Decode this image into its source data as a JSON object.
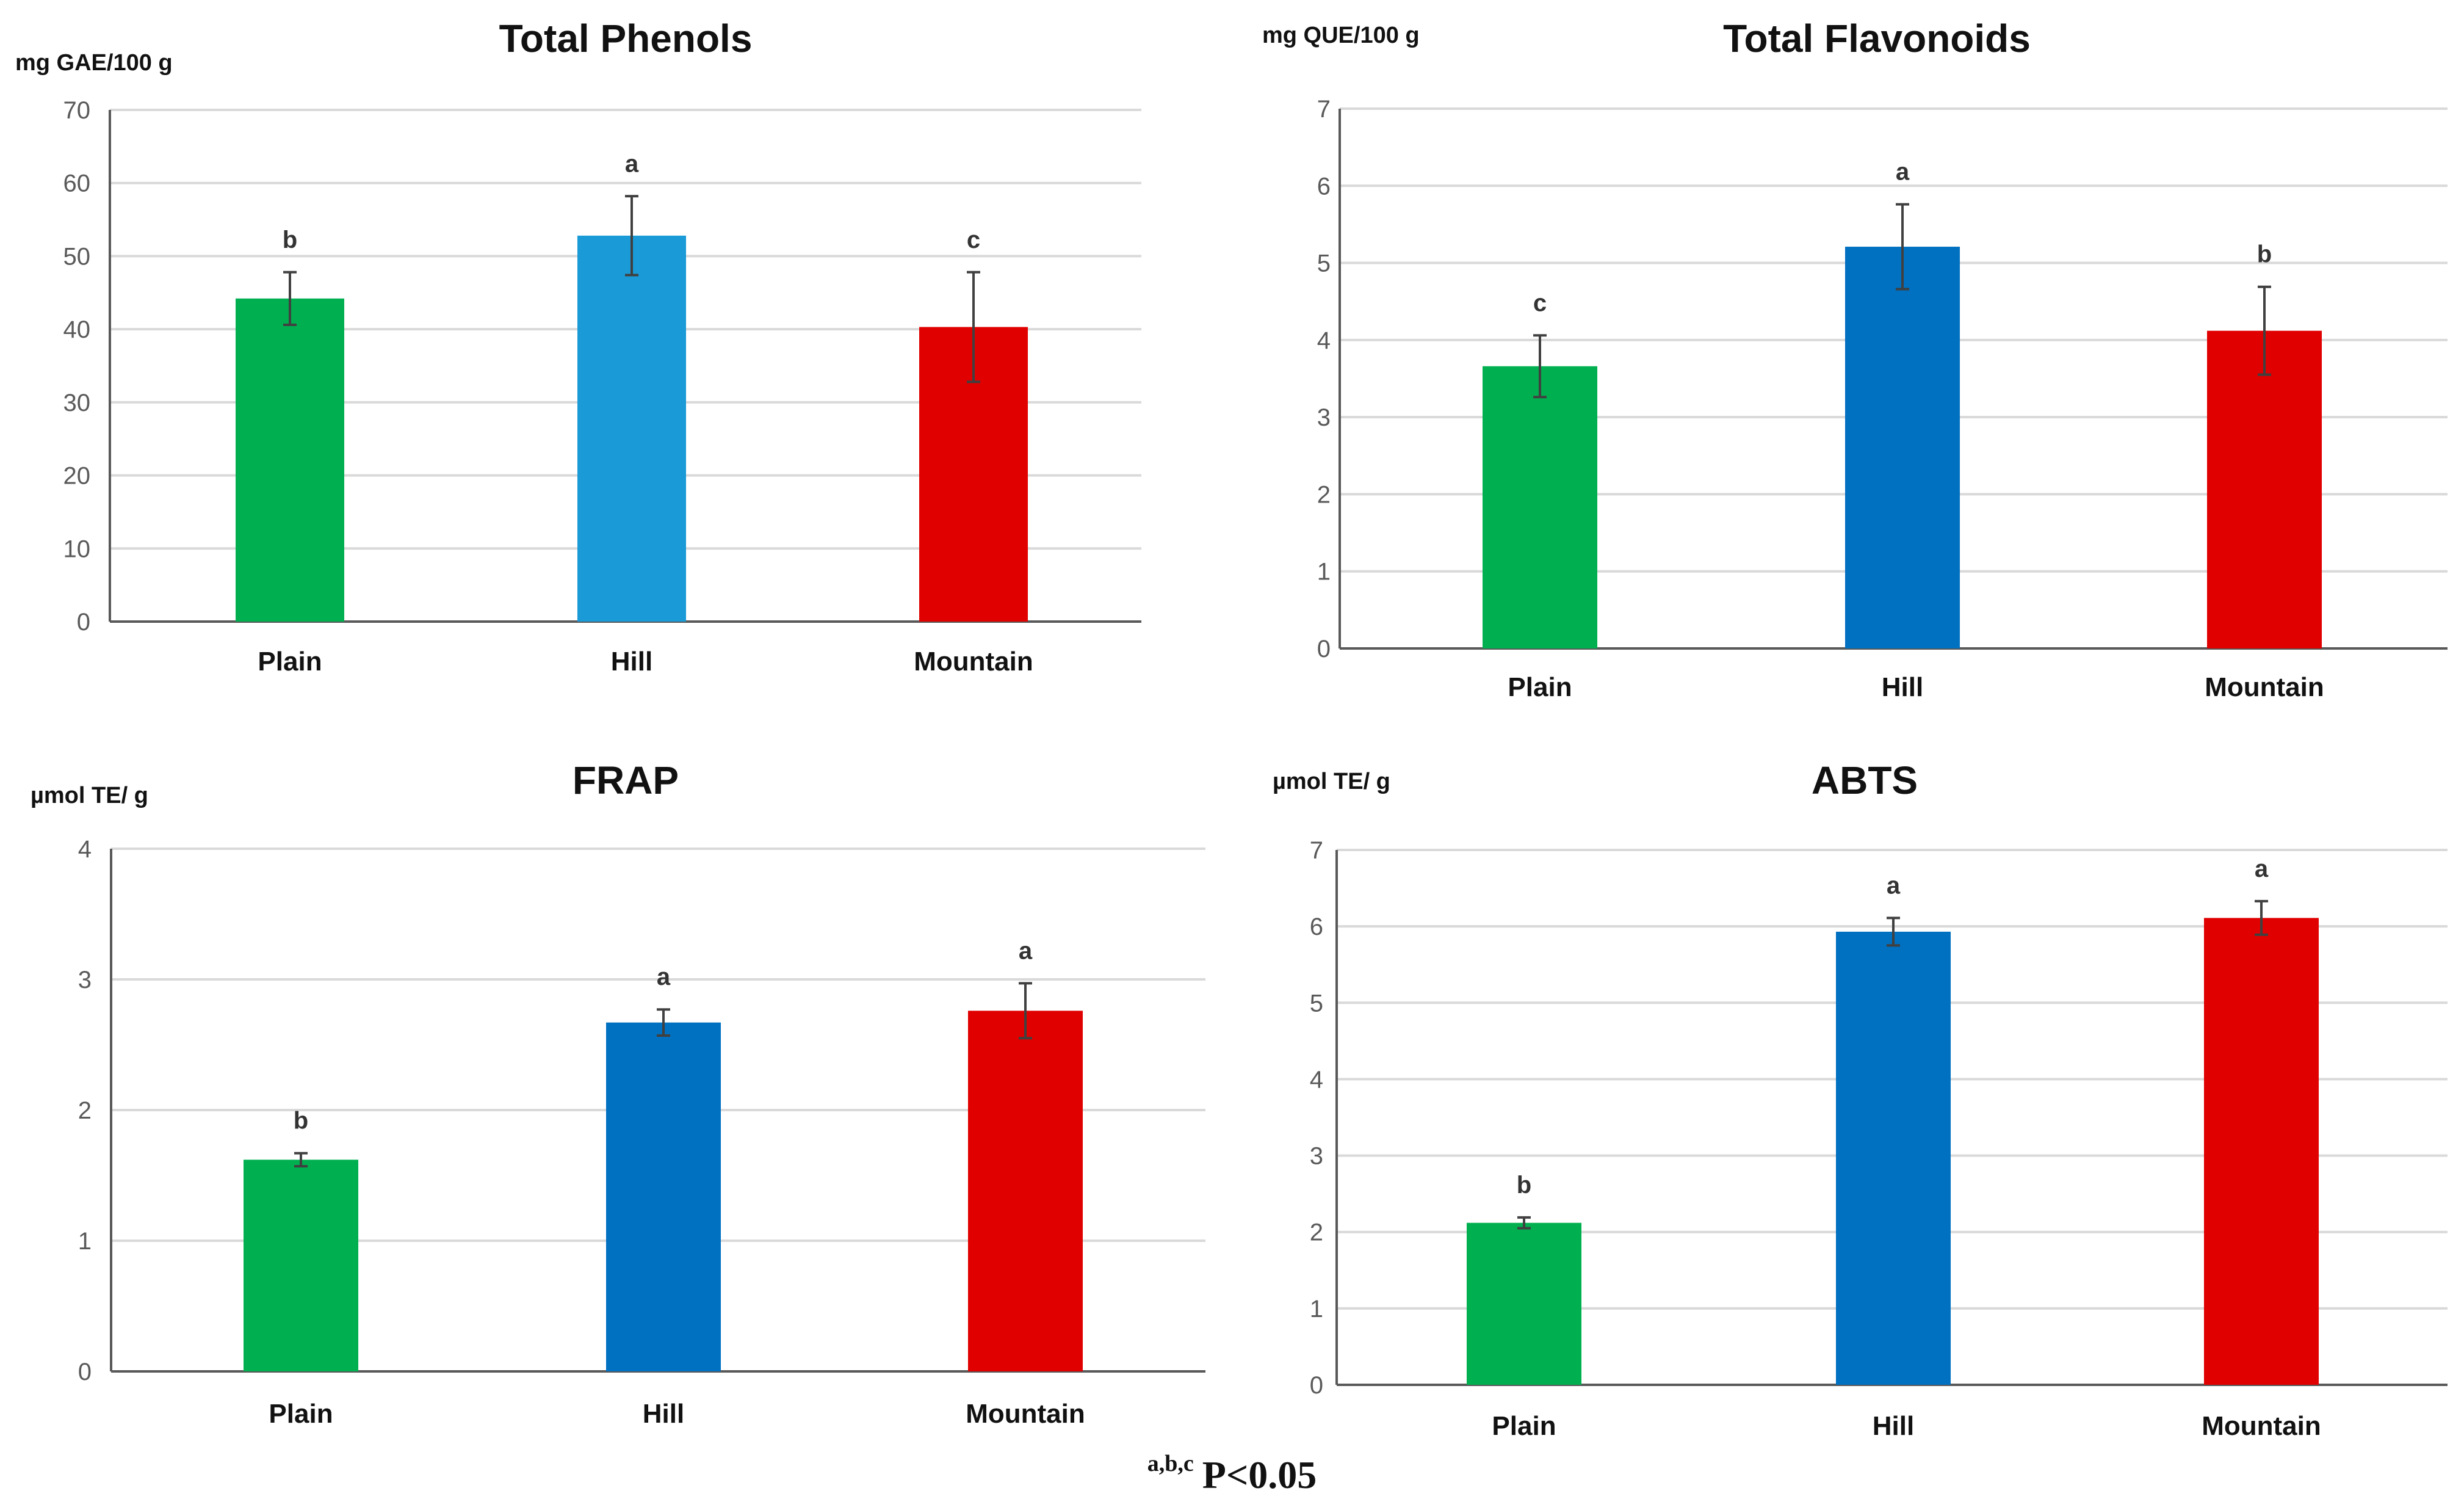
{
  "chart_data": [
    {
      "type": "bar",
      "title": "Total Phenols",
      "ylabel": "mg GAE/100 g",
      "xlabel": "",
      "categories": [
        "Plain",
        "Hill",
        "Mountain"
      ],
      "values": [
        44.2,
        52.8,
        40.3
      ],
      "errors": [
        3.6,
        5.4,
        7.5
      ],
      "letters": [
        "b",
        "a",
        "c"
      ],
      "colors": [
        "#00b050",
        "#1a9bd7",
        "#e00000"
      ],
      "ylim": [
        0,
        70
      ],
      "yticks": [
        0,
        10,
        20,
        30,
        40,
        50,
        60,
        70
      ],
      "grid": true
    },
    {
      "type": "bar",
      "title": "Total Flavonoids",
      "ylabel": "mg QUE/100 g",
      "xlabel": "",
      "categories": [
        "Plain",
        "Hill",
        "Mountain"
      ],
      "values": [
        3.66,
        5.21,
        4.12
      ],
      "errors": [
        0.4,
        0.55,
        0.57
      ],
      "letters": [
        "c",
        "a",
        "b"
      ],
      "colors": [
        "#00b050",
        "#0070c0",
        "#e00000"
      ],
      "ylim": [
        0,
        7
      ],
      "yticks": [
        0,
        1,
        2,
        3,
        4,
        5,
        6,
        7
      ],
      "grid": true
    },
    {
      "type": "bar",
      "title": "FRAP",
      "ylabel": "µmol TE/ g",
      "xlabel": "",
      "categories": [
        "Plain",
        "Hill",
        "Mountain"
      ],
      "values": [
        1.62,
        2.67,
        2.76
      ],
      "errors": [
        0.05,
        0.1,
        0.21
      ],
      "letters": [
        "b",
        "a",
        "a"
      ],
      "colors": [
        "#00b050",
        "#0070c0",
        "#e00000"
      ],
      "ylim": [
        0,
        4
      ],
      "yticks": [
        0,
        1,
        2,
        3,
        4
      ],
      "grid": true
    },
    {
      "type": "bar",
      "title": "ABTS",
      "ylabel": "µmol TE/ g",
      "xlabel": "",
      "categories": [
        "Plain",
        "Hill",
        "Mountain"
      ],
      "values": [
        2.12,
        5.93,
        6.11
      ],
      "errors": [
        0.07,
        0.18,
        0.22
      ],
      "letters": [
        "b",
        "a",
        "a"
      ],
      "colors": [
        "#00b050",
        "#0070c0",
        "#e00000"
      ],
      "ylim": [
        0,
        7
      ],
      "yticks": [
        0,
        1,
        2,
        3,
        4,
        5,
        6,
        7
      ],
      "grid": true
    }
  ],
  "footnote": {
    "superscript": "a,b,c",
    "text": "P<0.05"
  }
}
